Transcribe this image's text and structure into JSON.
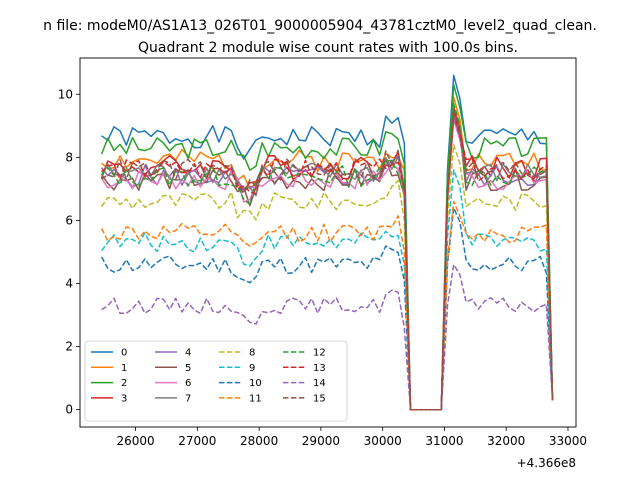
{
  "figure": {
    "suptitle": "n file: modeM0/AS1A13_026T01_9000005904_43781cztM0_level2_quad_clean.",
    "title": "Quadrant 2 module wise count rates with 100.0s bins."
  },
  "chart_data": {
    "type": "line",
    "title": "Quadrant 2 module wise count rates with 100.0s bins.",
    "xlabel": "",
    "ylabel": "",
    "x_offset_label": "+4.366e8",
    "xlim": [
      25100,
      33130
    ],
    "ylim": [
      -0.55,
      11.15
    ],
    "xticks": [
      26000,
      27000,
      28000,
      29000,
      30000,
      31000,
      32000,
      33000
    ],
    "yticks": [
      0,
      2,
      4,
      6,
      8,
      10
    ],
    "legend": {
      "location": "lower-left",
      "ncol": 4
    },
    "series": [
      {
        "name": "0",
        "color": "#1f77b4",
        "dash": "solid",
        "base": 8.65,
        "amp": 0.35,
        "gap": 8.45,
        "peak": 10.6,
        "jump": [
          0,
          9
        ],
        "seed": 1
      },
      {
        "name": "1",
        "color": "#ff7f0e",
        "dash": "solid",
        "base": 7.9,
        "amp": 0.35,
        "gap": 7.6,
        "peak": 9.9,
        "jump": [
          0,
          9
        ],
        "seed": 2
      },
      {
        "name": "2",
        "color": "#2ca02c",
        "dash": "solid",
        "base": 8.3,
        "amp": 0.35,
        "gap": 7.8,
        "peak": 10.3,
        "jump": [
          0,
          9
        ],
        "seed": 3
      },
      {
        "name": "3",
        "color": "#d62728",
        "dash": "solid",
        "base": 7.7,
        "amp": 0.4,
        "gap": 7.0,
        "peak": 9.6,
        "jump": [
          0,
          9
        ],
        "seed": 4
      },
      {
        "name": "4",
        "color": "#9467bd",
        "dash": "solid",
        "base": 7.4,
        "amp": 0.35,
        "gap": 6.9,
        "peak": 9.3,
        "jump": [
          0,
          9
        ],
        "seed": 5
      },
      {
        "name": "5",
        "color": "#8c564b",
        "dash": "solid",
        "base": 7.3,
        "amp": 0.35,
        "gap": 6.8,
        "peak": 9.5,
        "jump": [
          0,
          9
        ],
        "seed": 6
      },
      {
        "name": "6",
        "color": "#e377c2",
        "dash": "solid",
        "base": 7.3,
        "amp": 0.35,
        "gap": 6.8,
        "peak": 9.2,
        "jump": [
          0,
          9
        ],
        "seed": 7
      },
      {
        "name": "7",
        "color": "#7f7f7f",
        "dash": "solid",
        "base": 7.5,
        "amp": 0.35,
        "gap": 6.9,
        "peak": 9.4,
        "jump": [
          0,
          9
        ],
        "seed": 8
      },
      {
        "name": "8",
        "color": "#bcbd22",
        "dash": "dashed",
        "base": 6.6,
        "amp": 0.3,
        "gap": 6.0,
        "peak": 8.4,
        "jump": [
          0,
          9
        ],
        "seed": 9
      },
      {
        "name": "9",
        "color": "#17becf",
        "dash": "dashed",
        "base": 5.3,
        "amp": 0.3,
        "gap": 4.6,
        "peak": 7.6,
        "jump": [
          0,
          9
        ],
        "seed": 10
      },
      {
        "name": "10",
        "color": "#1f77b4",
        "dash": "dashed",
        "base": 4.6,
        "amp": 0.3,
        "gap": 4.1,
        "peak": 6.4,
        "jump": [
          0,
          9
        ],
        "seed": 11
      },
      {
        "name": "11",
        "color": "#ff7f0e",
        "dash": "dashed",
        "base": 5.6,
        "amp": 0.3,
        "gap": 5.0,
        "peak": 6.6,
        "jump": [
          0,
          9
        ],
        "seed": 12
      },
      {
        "name": "12",
        "color": "#2ca02c",
        "dash": "dashed",
        "base": 7.4,
        "amp": 0.35,
        "gap": 6.9,
        "peak": 9.7,
        "jump": [
          0,
          9
        ],
        "seed": 13
      },
      {
        "name": "13",
        "color": "#d62728",
        "dash": "dashed",
        "base": 7.6,
        "amp": 0.35,
        "gap": 7.0,
        "peak": 9.4,
        "jump": [
          0,
          9
        ],
        "seed": 14
      },
      {
        "name": "14",
        "color": "#9467bd",
        "dash": "dashed",
        "base": 3.3,
        "amp": 0.25,
        "gap": 2.6,
        "peak": 4.6,
        "jump": [
          0,
          9
        ],
        "seed": 15
      },
      {
        "name": "15",
        "color": "#8c564b",
        "dash": "dashed",
        "base": 7.6,
        "amp": 0.35,
        "gap": 7.0,
        "peak": 9.3,
        "jump": [
          0,
          9
        ],
        "seed": 16
      }
    ]
  }
}
